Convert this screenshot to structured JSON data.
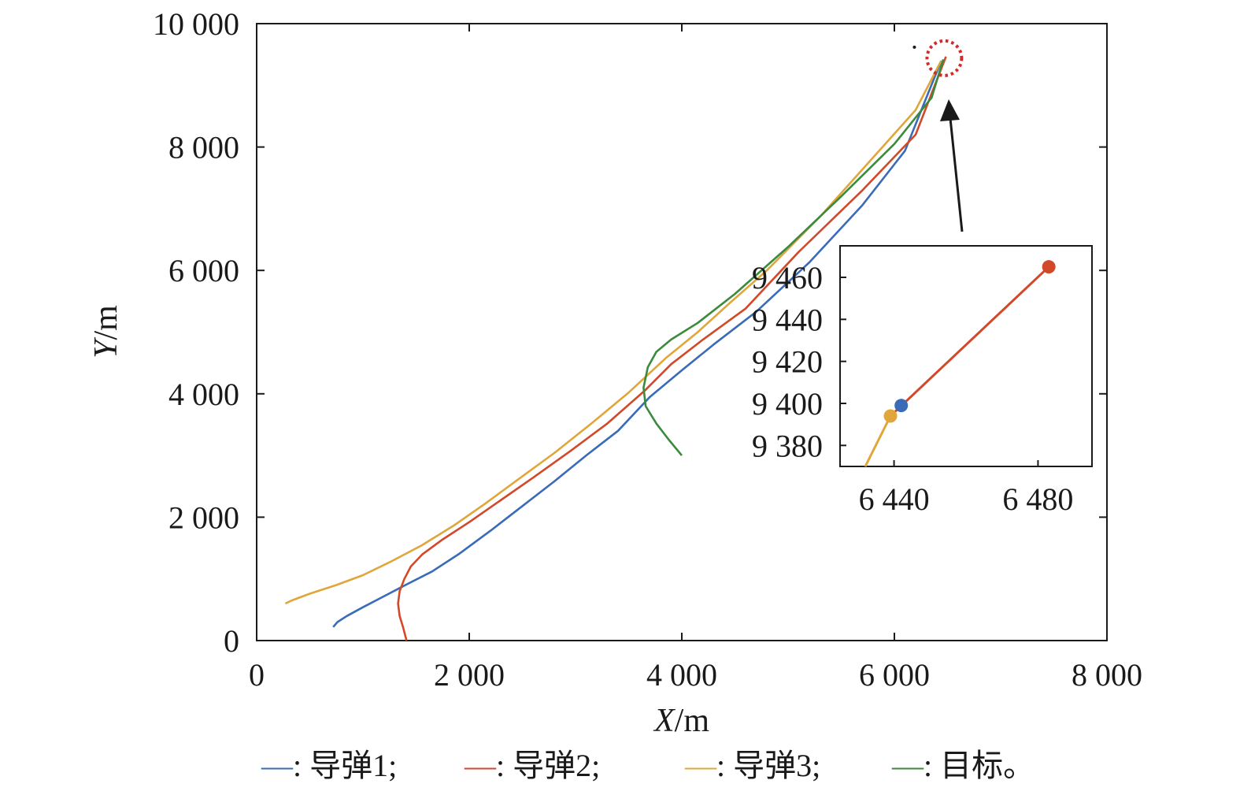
{
  "chart_data": {
    "type": "line",
    "title": "",
    "xlabel": {
      "var": "X",
      "unit": "/m"
    },
    "ylabel": {
      "var": "Y",
      "unit": "/m"
    },
    "xlim": [
      0,
      8000
    ],
    "ylim": [
      0,
      10000
    ],
    "x_ticks": [
      {
        "value": 0,
        "label": "0"
      },
      {
        "value": 2000,
        "label": "2 000"
      },
      {
        "value": 4000,
        "label": "4 000"
      },
      {
        "value": 6000,
        "label": "6 000"
      },
      {
        "value": 8000,
        "label": "8 000"
      }
    ],
    "y_ticks": [
      {
        "value": 0,
        "label": "0"
      },
      {
        "value": 2000,
        "label": "2 000"
      },
      {
        "value": 4000,
        "label": "4 000"
      },
      {
        "value": 6000,
        "label": "6 000"
      },
      {
        "value": 8000,
        "label": "8 000"
      },
      {
        "value": 10000,
        "label": "10 000"
      }
    ],
    "grid": false,
    "legend_position": "bottom",
    "series": [
      {
        "name": "导弹1",
        "legend_label": "—: 导弹1;",
        "color": "#3a6bb8",
        "points": [
          [
            720,
            220
          ],
          [
            760,
            300
          ],
          [
            850,
            400
          ],
          [
            1000,
            540
          ],
          [
            1200,
            720
          ],
          [
            1400,
            900
          ],
          [
            1650,
            1120
          ],
          [
            1900,
            1400
          ],
          [
            2200,
            1780
          ],
          [
            2500,
            2180
          ],
          [
            2800,
            2580
          ],
          [
            3100,
            3000
          ],
          [
            3400,
            3400
          ],
          [
            3700,
            3950
          ],
          [
            4000,
            4380
          ],
          [
            4300,
            4800
          ],
          [
            4700,
            5330
          ],
          [
            5200,
            6130
          ],
          [
            5700,
            7060
          ],
          [
            6100,
            7940
          ],
          [
            6441,
            9398
          ]
        ]
      },
      {
        "name": "导弹2",
        "legend_label": "—: 导弹2;",
        "color": "#d2492a",
        "points": [
          [
            1410,
            0
          ],
          [
            1380,
            200
          ],
          [
            1345,
            400
          ],
          [
            1330,
            600
          ],
          [
            1345,
            800
          ],
          [
            1390,
            1000
          ],
          [
            1450,
            1200
          ],
          [
            1560,
            1400
          ],
          [
            1750,
            1640
          ],
          [
            2000,
            1920
          ],
          [
            2300,
            2280
          ],
          [
            2600,
            2640
          ],
          [
            2950,
            3070
          ],
          [
            3300,
            3520
          ],
          [
            3650,
            4050
          ],
          [
            3900,
            4480
          ],
          [
            4200,
            4880
          ],
          [
            4600,
            5380
          ],
          [
            5100,
            6300
          ],
          [
            5700,
            7300
          ],
          [
            6200,
            8200
          ],
          [
            6485,
            9465
          ]
        ]
      },
      {
        "name": "导弹3",
        "legend_label": "—: 导弹3;",
        "color": "#e0a63a",
        "points": [
          [
            270,
            600
          ],
          [
            330,
            650
          ],
          [
            500,
            760
          ],
          [
            750,
            900
          ],
          [
            1000,
            1060
          ],
          [
            1250,
            1270
          ],
          [
            1550,
            1540
          ],
          [
            1850,
            1860
          ],
          [
            2150,
            2220
          ],
          [
            2450,
            2600
          ],
          [
            2800,
            3040
          ],
          [
            3150,
            3520
          ],
          [
            3500,
            4020
          ],
          [
            3850,
            4580
          ],
          [
            4150,
            5000
          ],
          [
            4450,
            5470
          ],
          [
            4800,
            6000
          ],
          [
            5300,
            6870
          ],
          [
            5800,
            7830
          ],
          [
            6200,
            8600
          ],
          [
            6439,
            9394
          ]
        ]
      },
      {
        "name": "目标",
        "legend_label": "—: 目标。",
        "color": "#3b8a3e",
        "points": [
          [
            4000,
            3000
          ],
          [
            3880,
            3250
          ],
          [
            3760,
            3520
          ],
          [
            3660,
            3800
          ],
          [
            3640,
            4100
          ],
          [
            3680,
            4430
          ],
          [
            3760,
            4680
          ],
          [
            3900,
            4880
          ],
          [
            4150,
            5150
          ],
          [
            4500,
            5620
          ],
          [
            5000,
            6380
          ],
          [
            5500,
            7200
          ],
          [
            6000,
            8050
          ],
          [
            6350,
            8800
          ],
          [
            6460,
            9420
          ]
        ]
      }
    ],
    "inset": {
      "xlim": [
        6425,
        6495
      ],
      "ylim": [
        9370,
        9475
      ],
      "x_ticks": [
        {
          "value": 6440,
          "label": "6 440"
        },
        {
          "value": 6480,
          "label": "6 480"
        }
      ],
      "y_ticks": [
        {
          "value": 9380,
          "label": "9 380"
        },
        {
          "value": 9400,
          "label": "9 400"
        },
        {
          "value": 9420,
          "label": "9 420"
        },
        {
          "value": 9440,
          "label": "9 440"
        },
        {
          "value": 9460,
          "label": "9 460"
        }
      ],
      "lines": [
        {
          "series": "导弹3",
          "color": "#e0a63a",
          "points": [
            [
              6432,
              9370
            ],
            [
              6439,
              9394
            ]
          ]
        },
        {
          "series": "导弹2",
          "color": "#d2492a",
          "points": [
            [
              6439,
              9394
            ],
            [
              6483,
              9465
            ]
          ]
        }
      ],
      "markers": [
        {
          "series": "导弹1",
          "color": "#3a6bb8",
          "x": 6442,
          "y": 9399
        },
        {
          "series": "导弹2",
          "color": "#d2492a",
          "x": 6483,
          "y": 9465
        },
        {
          "series": "导弹3",
          "color": "#e0a63a",
          "x": 6439,
          "y": 9394
        }
      ]
    },
    "highlight": {
      "shape": "dotted-circle",
      "color": "#d42a2a",
      "x": 6470,
      "y": 9440
    }
  }
}
